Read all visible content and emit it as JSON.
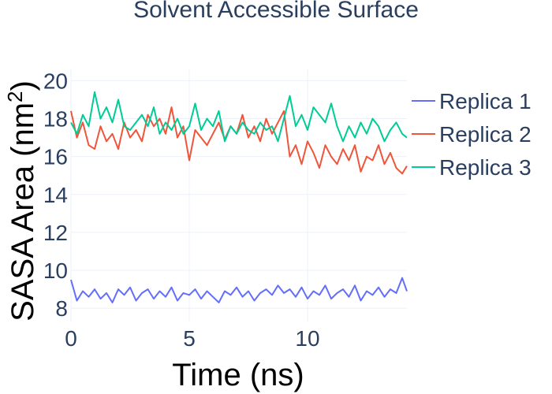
{
  "chart_data": {
    "type": "line",
    "title": "Solvent Accessible Surface",
    "xlabel": "Time (ns)",
    "ylabel": "SASA Area (nm²)",
    "ylabel_parts": {
      "pre": "SASA Area (nm",
      "sup": "2",
      "post": ")"
    },
    "xlim": [
      0,
      14.2
    ],
    "ylim": [
      7.3,
      20.6
    ],
    "x_ticks": [
      0,
      5,
      10
    ],
    "y_ticks": [
      8,
      10,
      12,
      14,
      16,
      18,
      20
    ],
    "grid": true,
    "legend_position": "top-right",
    "series": [
      {
        "name": "Replica 1",
        "color": "#636efa",
        "x": [
          0,
          0.25,
          0.5,
          0.75,
          1,
          1.25,
          1.5,
          1.75,
          2,
          2.25,
          2.5,
          2.75,
          3,
          3.25,
          3.5,
          3.75,
          4,
          4.25,
          4.5,
          4.75,
          5,
          5.25,
          5.5,
          5.75,
          6,
          6.25,
          6.5,
          6.75,
          7,
          7.25,
          7.5,
          7.75,
          8,
          8.25,
          8.5,
          8.75,
          9,
          9.25,
          9.5,
          9.75,
          10,
          10.25,
          10.5,
          10.75,
          11,
          11.25,
          11.5,
          11.75,
          12,
          12.25,
          12.5,
          12.75,
          13,
          13.25,
          13.5,
          13.75,
          14,
          14.2
        ],
        "values": [
          9.5,
          8.4,
          8.9,
          8.6,
          9.0,
          8.5,
          8.8,
          8.3,
          9.0,
          8.7,
          9.1,
          8.4,
          8.8,
          9.0,
          8.5,
          8.9,
          8.6,
          9.1,
          8.4,
          8.8,
          8.7,
          9.0,
          8.5,
          8.9,
          8.6,
          8.3,
          8.9,
          8.7,
          9.1,
          8.6,
          8.9,
          8.4,
          8.8,
          9.0,
          8.7,
          9.2,
          8.8,
          9.0,
          8.6,
          9.1,
          8.5,
          8.9,
          8.7,
          9.2,
          8.5,
          8.8,
          9.0,
          8.6,
          9.2,
          8.4,
          8.9,
          8.7,
          9.1,
          8.6,
          9.0,
          8.8,
          9.6,
          8.9
        ]
      },
      {
        "name": "Replica 2",
        "color": "#ef553b",
        "x": [
          0,
          0.25,
          0.5,
          0.75,
          1,
          1.25,
          1.5,
          1.75,
          2,
          2.25,
          2.5,
          2.75,
          3,
          3.25,
          3.5,
          3.75,
          4,
          4.25,
          4.5,
          4.75,
          5,
          5.25,
          5.5,
          5.75,
          6,
          6.25,
          6.5,
          6.75,
          7,
          7.25,
          7.5,
          7.75,
          8,
          8.25,
          8.5,
          8.75,
          9,
          9.25,
          9.5,
          9.75,
          10,
          10.25,
          10.5,
          10.75,
          11,
          11.25,
          11.5,
          11.75,
          12,
          12.25,
          12.5,
          12.75,
          13,
          13.25,
          13.5,
          13.75,
          14,
          14.2
        ],
        "values": [
          18.4,
          17.0,
          17.8,
          16.6,
          16.4,
          17.6,
          16.8,
          17.2,
          16.4,
          17.8,
          17.0,
          17.4,
          16.8,
          18.2,
          17.6,
          18.0,
          17.2,
          18.6,
          17.0,
          17.6,
          15.8,
          17.4,
          17.0,
          16.6,
          17.2,
          17.8,
          16.9,
          17.6,
          17.2,
          18.2,
          17.0,
          17.6,
          16.8,
          18.0,
          17.2,
          17.8,
          18.4,
          16.0,
          16.6,
          15.6,
          16.8,
          16.2,
          15.4,
          16.6,
          16.0,
          15.6,
          16.4,
          15.8,
          16.6,
          15.2,
          16.0,
          15.8,
          16.6,
          15.6,
          16.2,
          15.4,
          15.1,
          15.5
        ]
      },
      {
        "name": "Replica 3",
        "color": "#00cc96",
        "x": [
          0,
          0.25,
          0.5,
          0.75,
          1,
          1.25,
          1.5,
          1.75,
          2,
          2.25,
          2.5,
          2.75,
          3,
          3.25,
          3.5,
          3.75,
          4,
          4.25,
          4.5,
          4.75,
          5,
          5.25,
          5.5,
          5.75,
          6,
          6.25,
          6.5,
          6.75,
          7,
          7.25,
          7.5,
          7.75,
          8,
          8.25,
          8.5,
          8.75,
          9,
          9.25,
          9.5,
          9.75,
          10,
          10.25,
          10.5,
          10.75,
          11,
          11.25,
          11.5,
          11.75,
          12,
          12.25,
          12.5,
          12.75,
          13,
          13.25,
          13.5,
          13.75,
          14,
          14.2
        ],
        "values": [
          17.8,
          17.2,
          18.2,
          17.6,
          19.4,
          18.0,
          18.6,
          17.8,
          19.0,
          17.6,
          17.4,
          17.8,
          18.2,
          17.6,
          18.6,
          17.2,
          17.8,
          17.4,
          18.0,
          17.2,
          17.6,
          18.8,
          17.4,
          18.0,
          17.6,
          18.4,
          16.8,
          17.6,
          17.2,
          17.8,
          17.4,
          17.2,
          17.8,
          17.4,
          17.6,
          16.8,
          18.0,
          19.2,
          17.6,
          18.2,
          17.4,
          18.6,
          18.2,
          17.8,
          18.8,
          17.6,
          16.8,
          17.6,
          17.0,
          17.8,
          17.2,
          18.0,
          17.6,
          16.8,
          17.4,
          17.8,
          17.2,
          17.0
        ]
      }
    ]
  }
}
